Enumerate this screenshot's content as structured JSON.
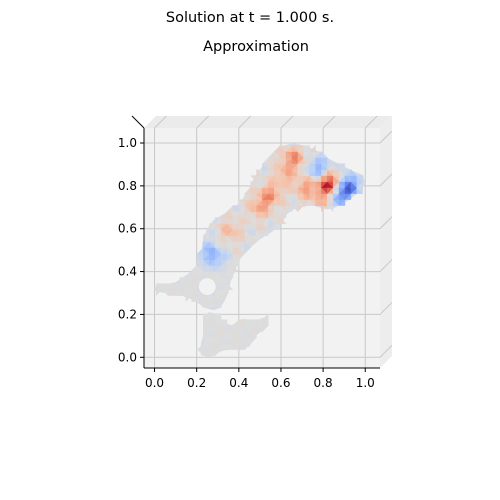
{
  "figure": {
    "suptitle": "Solution at t = 1.000 s.",
    "subtitle": "Approximation"
  },
  "chart_data": {
    "type": "3d-surface (top view, trisurf)",
    "title": "Approximation",
    "suptitle": "Solution at t = 1.000 s.",
    "xlabel": "",
    "ylabel": "",
    "xlim": [
      -0.05,
      1.07
    ],
    "ylim": [
      -0.05,
      1.07
    ],
    "x_ticks": [
      0.0,
      0.2,
      0.4,
      0.6,
      0.8,
      1.0
    ],
    "y_ticks": [
      0.0,
      0.2,
      0.4,
      0.6,
      0.8,
      1.0
    ],
    "x_tick_labels": [
      "0.0",
      "0.2",
      "0.4",
      "0.6",
      "0.8",
      "1.0"
    ],
    "y_tick_labels": [
      "0.0",
      "0.2",
      "0.4",
      "0.6",
      "0.8",
      "1.0"
    ],
    "colormap": "coolwarm",
    "grid": true,
    "pane_color": "#f2f2f2",
    "background_color": "#ffffff",
    "domain_outline": [
      [
        0.23,
        0.19
      ],
      [
        0.26,
        0.21
      ],
      [
        0.3,
        0.2
      ],
      [
        0.32,
        0.17
      ],
      [
        0.36,
        0.15
      ],
      [
        0.4,
        0.16
      ],
      [
        0.42,
        0.18
      ],
      [
        0.48,
        0.17
      ],
      [
        0.53,
        0.19
      ],
      [
        0.54,
        0.15
      ],
      [
        0.48,
        0.1
      ],
      [
        0.45,
        0.05
      ],
      [
        0.32,
        0.03
      ],
      [
        0.26,
        0.0
      ],
      [
        0.22,
        0.01
      ],
      [
        0.22,
        0.06
      ],
      [
        0.23,
        0.1
      ],
      [
        0.23,
        0.19
      ]
    ],
    "upper_outline": [
      [
        0.0,
        0.33
      ],
      [
        0.1,
        0.35
      ],
      [
        0.16,
        0.39
      ],
      [
        0.2,
        0.43
      ],
      [
        0.22,
        0.49
      ],
      [
        0.23,
        0.55
      ],
      [
        0.25,
        0.6
      ],
      [
        0.28,
        0.64
      ],
      [
        0.33,
        0.67
      ],
      [
        0.38,
        0.7
      ],
      [
        0.42,
        0.74
      ],
      [
        0.45,
        0.79
      ],
      [
        0.48,
        0.85
      ],
      [
        0.52,
        0.9
      ],
      [
        0.55,
        0.94
      ],
      [
        0.58,
        0.97
      ],
      [
        0.62,
        0.99
      ],
      [
        0.66,
        1.0
      ],
      [
        0.7,
        0.99
      ],
      [
        0.76,
        0.97
      ],
      [
        0.82,
        0.93
      ],
      [
        0.88,
        0.9
      ],
      [
        0.94,
        0.87
      ],
      [
        0.99,
        0.85
      ],
      [
        1.0,
        0.81
      ],
      [
        0.97,
        0.77
      ],
      [
        0.93,
        0.74
      ],
      [
        0.9,
        0.72
      ],
      [
        0.86,
        0.7
      ],
      [
        0.82,
        0.69
      ],
      [
        0.78,
        0.7
      ],
      [
        0.74,
        0.71
      ],
      [
        0.7,
        0.7
      ],
      [
        0.66,
        0.69
      ],
      [
        0.63,
        0.67
      ],
      [
        0.6,
        0.62
      ],
      [
        0.55,
        0.58
      ],
      [
        0.5,
        0.55
      ],
      [
        0.44,
        0.5
      ],
      [
        0.4,
        0.45
      ],
      [
        0.38,
        0.4
      ],
      [
        0.36,
        0.35
      ],
      [
        0.35,
        0.3
      ],
      [
        0.33,
        0.26
      ],
      [
        0.31,
        0.23
      ],
      [
        0.28,
        0.22
      ],
      [
        0.24,
        0.23
      ],
      [
        0.21,
        0.25
      ],
      [
        0.18,
        0.27
      ],
      [
        0.12,
        0.29
      ],
      [
        0.05,
        0.3
      ],
      [
        0.0,
        0.31
      ]
    ],
    "hole": {
      "cx": 0.25,
      "cy": 0.33,
      "r": 0.04
    },
    "hotspots": [
      {
        "x": 0.83,
        "y": 0.81,
        "v": 1.0
      },
      {
        "x": 0.66,
        "y": 0.93,
        "v": 0.55
      },
      {
        "x": 0.72,
        "y": 0.79,
        "v": 0.45
      },
      {
        "x": 0.55,
        "y": 0.76,
        "v": 0.5
      },
      {
        "x": 0.5,
        "y": 0.7,
        "v": 0.4
      },
      {
        "x": 0.92,
        "y": 0.8,
        "v": -0.8
      },
      {
        "x": 0.88,
        "y": 0.75,
        "v": -0.6
      },
      {
        "x": 0.78,
        "y": 0.88,
        "v": -0.5
      },
      {
        "x": 0.28,
        "y": 0.47,
        "v": -0.45
      },
      {
        "x": 0.21,
        "y": 0.52,
        "v": -0.3
      },
      {
        "x": 0.36,
        "y": 0.59,
        "v": 0.3
      },
      {
        "x": 0.62,
        "y": 0.85,
        "v": 0.35
      },
      {
        "x": 0.8,
        "y": 0.74,
        "v": 0.3
      }
    ]
  }
}
